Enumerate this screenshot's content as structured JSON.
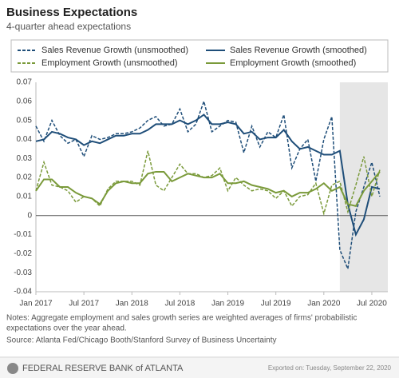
{
  "chart_data": {
    "type": "line",
    "title": "Business Expectations",
    "subtitle": "4-quarter ahead expectations",
    "x": [
      "2017-01",
      "2017-02",
      "2017-03",
      "2017-04",
      "2017-05",
      "2017-06",
      "2017-07",
      "2017-08",
      "2017-09",
      "2017-10",
      "2017-11",
      "2017-12",
      "2018-01",
      "2018-02",
      "2018-03",
      "2018-04",
      "2018-05",
      "2018-06",
      "2018-07",
      "2018-08",
      "2018-09",
      "2018-10",
      "2018-11",
      "2018-12",
      "2019-01",
      "2019-02",
      "2019-03",
      "2019-04",
      "2019-05",
      "2019-06",
      "2019-07",
      "2019-08",
      "2019-09",
      "2019-10",
      "2019-11",
      "2019-12",
      "2020-01",
      "2020-02",
      "2020-03",
      "2020-04",
      "2020-05",
      "2020-06",
      "2020-07",
      "2020-08"
    ],
    "series": [
      {
        "name": "Sales Revenue Growth (unsmoothed)",
        "color": "#1f4e79",
        "dashed": true,
        "values": [
          0.047,
          0.039,
          0.05,
          0.042,
          0.038,
          0.04,
          0.031,
          0.042,
          0.04,
          0.041,
          0.043,
          0.043,
          0.044,
          0.046,
          0.05,
          0.052,
          0.047,
          0.048,
          0.056,
          0.044,
          0.048,
          0.06,
          0.044,
          0.047,
          0.05,
          0.049,
          0.033,
          0.047,
          0.036,
          0.044,
          0.041,
          0.053,
          0.025,
          0.035,
          0.04,
          0.018,
          0.04,
          0.052,
          -0.018,
          -0.028,
          0.002,
          0.015,
          0.028,
          0.01
        ]
      },
      {
        "name": "Sales Revenue Growth (smoothed)",
        "color": "#1f4e79",
        "dashed": false,
        "values": [
          0.039,
          0.04,
          0.044,
          0.043,
          0.041,
          0.04,
          0.037,
          0.039,
          0.038,
          0.04,
          0.042,
          0.042,
          0.043,
          0.043,
          0.045,
          0.048,
          0.048,
          0.048,
          0.05,
          0.048,
          0.05,
          0.053,
          0.048,
          0.048,
          0.049,
          0.048,
          0.043,
          0.044,
          0.04,
          0.041,
          0.041,
          0.045,
          0.039,
          0.035,
          0.036,
          0.034,
          0.032,
          0.032,
          0.034,
          0.006,
          -0.01,
          -0.002,
          0.015,
          0.014
        ]
      },
      {
        "name": "Employment Growth (unsmoothed)",
        "color": "#7a9a3a",
        "dashed": true,
        "values": [
          0.013,
          0.028,
          0.016,
          0.015,
          0.013,
          0.007,
          0.01,
          0.009,
          0.005,
          0.014,
          0.018,
          0.018,
          0.018,
          0.016,
          0.034,
          0.016,
          0.013,
          0.02,
          0.027,
          0.022,
          0.022,
          0.02,
          0.021,
          0.025,
          0.013,
          0.02,
          0.016,
          0.013,
          0.014,
          0.013,
          0.009,
          0.013,
          0.005,
          0.01,
          0.011,
          0.017,
          0.001,
          0.016,
          0.018,
          0.002,
          0.016,
          0.031,
          0.01,
          0.024
        ]
      },
      {
        "name": "Employment Growth (smoothed)",
        "color": "#7a9a3a",
        "dashed": false,
        "values": [
          0.013,
          0.019,
          0.019,
          0.015,
          0.015,
          0.012,
          0.01,
          0.009,
          0.006,
          0.013,
          0.017,
          0.018,
          0.017,
          0.017,
          0.022,
          0.023,
          0.023,
          0.018,
          0.02,
          0.022,
          0.021,
          0.02,
          0.02,
          0.022,
          0.017,
          0.017,
          0.018,
          0.016,
          0.015,
          0.014,
          0.012,
          0.013,
          0.01,
          0.012,
          0.012,
          0.014,
          0.017,
          0.013,
          0.015,
          0.006,
          0.005,
          0.013,
          0.018,
          0.023
        ]
      }
    ],
    "xlim": [
      "2017-01",
      "2020-09"
    ],
    "xticks": [
      {
        "value": "2017-01",
        "label": "Jan 2017"
      },
      {
        "value": "2017-07",
        "label": "Jul 2017"
      },
      {
        "value": "2018-01",
        "label": "Jan 2018"
      },
      {
        "value": "2018-07",
        "label": "Jul 2018"
      },
      {
        "value": "2019-01",
        "label": "Jan 2019"
      },
      {
        "value": "2019-07",
        "label": "Jul 2019"
      },
      {
        "value": "2020-01",
        "label": "Jan 2020"
      },
      {
        "value": "2020-07",
        "label": "Jul 2020"
      }
    ],
    "ylim": [
      -0.04,
      0.07
    ],
    "yticks": [
      -0.04,
      -0.03,
      -0.02,
      -0.01,
      0,
      0.01,
      0.02,
      0.03,
      0.04,
      0.05,
      0.06,
      0.07
    ],
    "grid": false,
    "shade": [
      "2020-03",
      "2020-09"
    ],
    "notes": [
      "Notes: Aggregate employment and sales growth series are weighted averages of firms' probabilistic",
      "expectations over the year ahead."
    ],
    "source": "Source: Atlanta Fed/Chicago Booth/Stanford Survey of Business Uncertainty",
    "footer_brand": "FEDERAL RESERVE BANK of ATLANTA",
    "export_note": "Exported on: Tuesday, September 22, 2020"
  }
}
